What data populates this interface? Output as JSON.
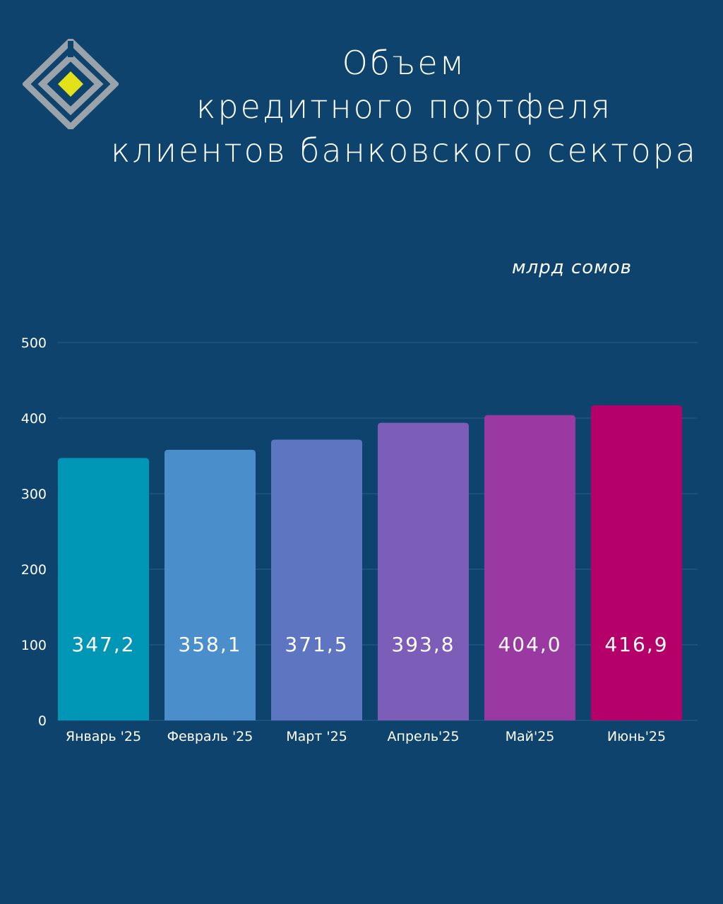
{
  "title_lines": [
    "Объем",
    "кредитного портфеля",
    "клиентов банковского сектора"
  ],
  "unit_label": "млрд сомов",
  "colors": {
    "background": "#0e436d",
    "grid": "#2b5f8a",
    "text": "#ffffff",
    "logo_gray": "#9aa2aa",
    "logo_yellow": "#e3e21a"
  },
  "logo": {
    "icon": "diamond-logo-icon"
  },
  "chart_data": {
    "type": "bar",
    "title": "Объем кредитного портфеля клиентов банковского сектора",
    "ylabel": "млрд сомов",
    "xlabel": "",
    "categories": [
      "Январь '25",
      "Февраль '25",
      "Март '25",
      "Апрель'25",
      "Май'25",
      "Июнь'25"
    ],
    "values": [
      347.2,
      358.1,
      371.5,
      393.8,
      404.0,
      416.9
    ],
    "value_labels": [
      "347,2",
      "358,1",
      "371,5",
      "393,8",
      "404,0",
      "416,9"
    ],
    "bar_colors": [
      "#0096b6",
      "#4a8fcb",
      "#5e75c2",
      "#7c5db8",
      "#9b39a2",
      "#b60069"
    ],
    "ylim": [
      0,
      500
    ],
    "yticks": [
      0,
      100,
      200,
      300,
      400,
      500
    ],
    "grid": true,
    "legend": "none"
  }
}
